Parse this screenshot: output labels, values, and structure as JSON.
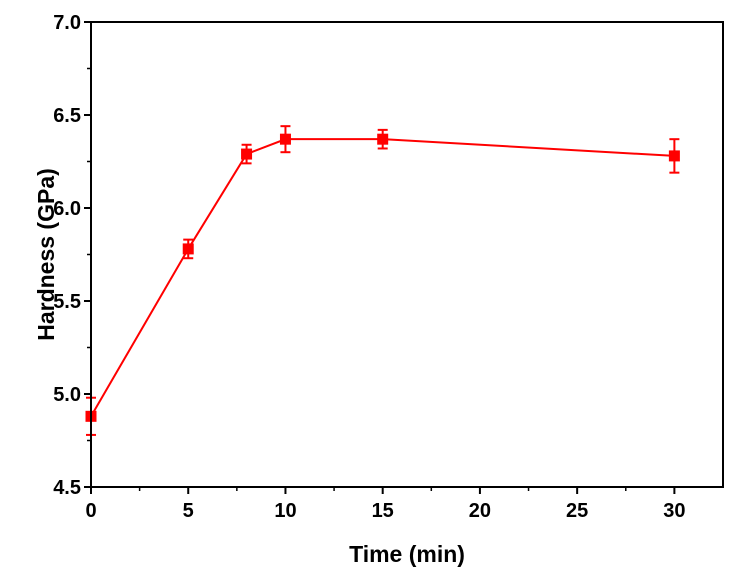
{
  "chart_data": {
    "type": "line",
    "xlabel": "Time (min)",
    "ylabel": "Hardness (GPa)",
    "xlim": [
      0,
      32.5
    ],
    "ylim": [
      4.5,
      7.0
    ],
    "x_ticks": [
      0,
      5,
      10,
      15,
      20,
      25,
      30
    ],
    "x_tick_labels": [
      "0",
      "5",
      "10",
      "15",
      "20",
      "25",
      "30"
    ],
    "y_ticks": [
      4.5,
      5.0,
      5.5,
      6.0,
      6.5,
      7.0
    ],
    "y_tick_labels": [
      "4.5",
      "5.0",
      "5.5",
      "6.0",
      "6.5",
      "7.0"
    ],
    "grid": false,
    "series": [
      {
        "color": "#ff0000",
        "marker": "square",
        "x": [
          0,
          5,
          8,
          10,
          15,
          30
        ],
        "y": [
          4.88,
          5.78,
          6.29,
          6.37,
          6.37,
          6.28
        ],
        "error": [
          0.1,
          0.05,
          0.05,
          0.07,
          0.05,
          0.09
        ]
      }
    ]
  }
}
